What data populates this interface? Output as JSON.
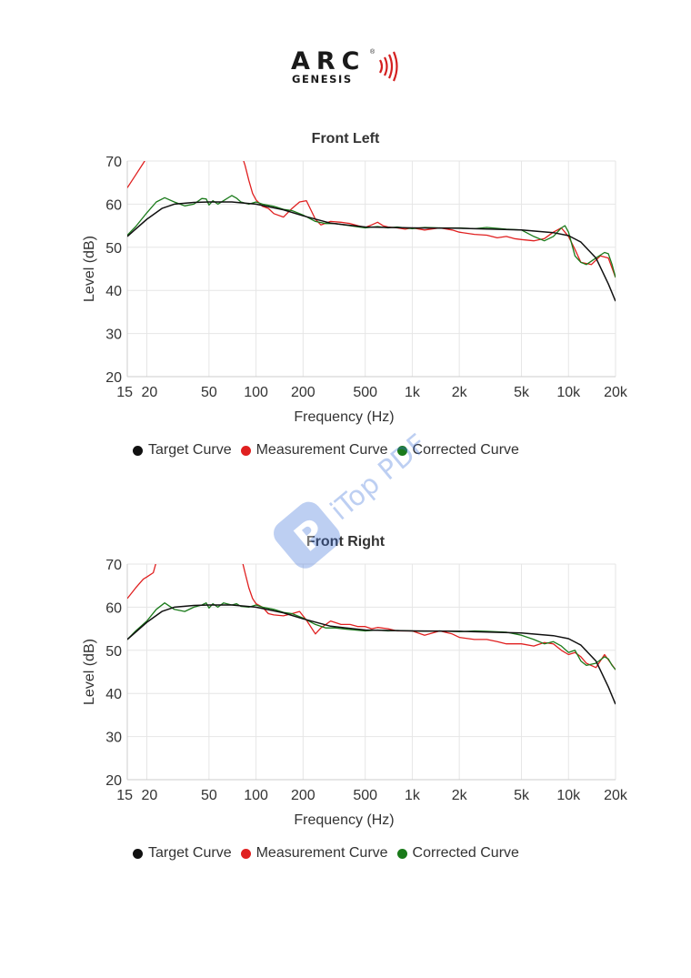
{
  "logo": {
    "word": "ARC",
    "sub": "GENESIS",
    "reg": "®"
  },
  "watermark": {
    "text": "iTop PDF"
  },
  "legend": [
    {
      "label": "Target Curve",
      "color": "#111111"
    },
    {
      "label": "Measurement Curve",
      "color": "#e02020"
    },
    {
      "label": "Corrected Curve",
      "color": "#1a7a1a"
    }
  ],
  "chart_data": [
    {
      "type": "line",
      "title": "Front Left",
      "xlabel": "Frequency (Hz)",
      "ylabel": "Level (dB)",
      "xscale": "log",
      "xlim": [
        15,
        20000
      ],
      "ylim": [
        20,
        70
      ],
      "xticks": [
        {
          "v": 15,
          "label": "15"
        },
        {
          "v": 20,
          "label": "20"
        },
        {
          "v": 50,
          "label": "50"
        },
        {
          "v": 100,
          "label": "100"
        },
        {
          "v": 200,
          "label": "200"
        },
        {
          "v": 500,
          "label": "500"
        },
        {
          "v": 1000,
          "label": "1k"
        },
        {
          "v": 2000,
          "label": "2k"
        },
        {
          "v": 5000,
          "label": "5k"
        },
        {
          "v": 10000,
          "label": "10k"
        },
        {
          "v": 20000,
          "label": "20k"
        }
      ],
      "yticks": [
        20,
        30,
        40,
        50,
        60,
        70
      ],
      "grid": true,
      "legend_position": "bottom-left",
      "series": [
        {
          "name": "Target Curve",
          "color": "#111111",
          "x": [
            15,
            20,
            25,
            30,
            40,
            50,
            70,
            100,
            150,
            200,
            300,
            500,
            1000,
            2000,
            5000,
            8000,
            10000,
            12000,
            15000,
            18000,
            20000
          ],
          "y": [
            52.5,
            56.5,
            59.0,
            60.0,
            60.4,
            60.5,
            60.5,
            60.0,
            58.7,
            57.3,
            55.6,
            54.7,
            54.5,
            54.4,
            54.0,
            53.4,
            52.7,
            51.2,
            47.5,
            41.5,
            37.5
          ]
        },
        {
          "name": "Measurement Curve",
          "color": "#e02020",
          "x": [
            15,
            17,
            19,
            20,
            21,
            80,
            85,
            90,
            95,
            100,
            110,
            120,
            130,
            150,
            170,
            190,
            210,
            240,
            260,
            300,
            350,
            400,
            450,
            500,
            550,
            600,
            650,
            700,
            800,
            900,
            1000,
            1200,
            1500,
            1800,
            2000,
            2500,
            3000,
            3500,
            4000,
            4500,
            5000,
            6000,
            7000,
            8000,
            9000,
            10000,
            11000,
            12000,
            14000,
            16000,
            18000,
            20000
          ],
          "y": [
            63.8,
            66.8,
            69.5,
            70.8,
            72,
            72,
            69,
            65.5,
            62.5,
            61.0,
            59.5,
            59.0,
            57.8,
            57.0,
            59.0,
            60.5,
            60.8,
            56.5,
            55.2,
            56.0,
            55.8,
            55.5,
            55.0,
            54.6,
            55.2,
            55.8,
            55.0,
            54.7,
            54.5,
            54.2,
            54.5,
            54.0,
            54.5,
            54.0,
            53.5,
            53.0,
            52.8,
            52.2,
            52.5,
            52.0,
            51.8,
            51.5,
            52.0,
            53.5,
            54.5,
            52.5,
            49.5,
            46.5,
            46.0,
            48.0,
            47.5,
            43.0
          ]
        },
        {
          "name": "Corrected Curve",
          "color": "#1a7a1a",
          "x": [
            15,
            17,
            20,
            23,
            26,
            30,
            35,
            40,
            45,
            48,
            50,
            53,
            57,
            62,
            70,
            75,
            80,
            90,
            100,
            110,
            130,
            150,
            170,
            200,
            240,
            280,
            320,
            400,
            500,
            600,
            700,
            800,
            1000,
            1200,
            1500,
            2000,
            2500,
            3000,
            4000,
            5000,
            6000,
            7000,
            8000,
            9000,
            9500,
            10000,
            11000,
            12000,
            13000,
            15000,
            17000,
            18000,
            19000,
            20000
          ],
          "y": [
            52.8,
            54.8,
            58.0,
            60.5,
            61.5,
            60.5,
            59.6,
            60.0,
            61.3,
            61.2,
            59.8,
            60.8,
            60.0,
            60.8,
            62.0,
            61.4,
            60.5,
            60.0,
            60.5,
            60.0,
            59.5,
            58.8,
            58.5,
            57.5,
            56.0,
            55.5,
            55.5,
            55.0,
            54.5,
            54.8,
            54.5,
            54.7,
            54.3,
            54.6,
            54.5,
            54.5,
            54.3,
            54.6,
            54.2,
            54.0,
            52.5,
            51.5,
            52.5,
            54.5,
            55.0,
            53.5,
            48.0,
            46.5,
            46.0,
            47.5,
            48.8,
            48.5,
            46.0,
            43.0
          ]
        }
      ]
    },
    {
      "type": "line",
      "title": "Front Right",
      "xlabel": "Frequency (Hz)",
      "ylabel": "Level (dB)",
      "xscale": "log",
      "xlim": [
        15,
        20000
      ],
      "ylim": [
        20,
        70
      ],
      "xticks": [
        {
          "v": 15,
          "label": "15"
        },
        {
          "v": 20,
          "label": "20"
        },
        {
          "v": 50,
          "label": "50"
        },
        {
          "v": 100,
          "label": "100"
        },
        {
          "v": 200,
          "label": "200"
        },
        {
          "v": 500,
          "label": "500"
        },
        {
          "v": 1000,
          "label": "1k"
        },
        {
          "v": 2000,
          "label": "2k"
        },
        {
          "v": 5000,
          "label": "5k"
        },
        {
          "v": 10000,
          "label": "10k"
        },
        {
          "v": 20000,
          "label": "20k"
        }
      ],
      "yticks": [
        20,
        30,
        40,
        50,
        60,
        70
      ],
      "grid": true,
      "legend_position": "bottom-left",
      "series": [
        {
          "name": "Target Curve",
          "color": "#111111",
          "x": [
            15,
            20,
            25,
            30,
            40,
            50,
            70,
            100,
            150,
            200,
            300,
            500,
            1000,
            2000,
            5000,
            8000,
            10000,
            12000,
            15000,
            18000,
            20000
          ],
          "y": [
            52.5,
            56.5,
            59.0,
            60.0,
            60.4,
            60.5,
            60.5,
            60.0,
            58.7,
            57.3,
            55.6,
            54.7,
            54.5,
            54.4,
            54.0,
            53.4,
            52.7,
            51.2,
            47.5,
            41.5,
            37.5
          ]
        },
        {
          "name": "Measurement Curve",
          "color": "#e02020",
          "x": [
            15,
            17,
            19,
            20,
            22,
            23,
            80,
            85,
            90,
            95,
            100,
            110,
            120,
            130,
            150,
            170,
            190,
            210,
            240,
            260,
            280,
            300,
            350,
            400,
            450,
            500,
            550,
            600,
            700,
            800,
            1000,
            1200,
            1500,
            1800,
            2000,
            2500,
            3000,
            3500,
            4000,
            5000,
            6000,
            7000,
            8000,
            9000,
            10000,
            11000,
            12000,
            13000,
            15000,
            17000,
            20000
          ],
          "y": [
            62.0,
            64.5,
            66.5,
            67.0,
            68.0,
            70.5,
            72,
            68,
            64.5,
            62.0,
            60.8,
            60.0,
            58.5,
            58.2,
            58.0,
            58.5,
            59.0,
            57.0,
            53.8,
            55.2,
            56.0,
            56.8,
            56.0,
            56.0,
            55.5,
            55.5,
            55.0,
            55.3,
            55.0,
            54.5,
            54.5,
            53.5,
            54.5,
            53.8,
            53.0,
            52.5,
            52.5,
            52.0,
            51.5,
            51.5,
            51.0,
            51.8,
            51.5,
            50.0,
            49.0,
            49.5,
            48.5,
            47.0,
            46.0,
            49.0,
            45.5
          ]
        },
        {
          "name": "Corrected Curve",
          "color": "#1a7a1a",
          "x": [
            15,
            17,
            20,
            23,
            26,
            30,
            35,
            40,
            45,
            48,
            50,
            53,
            57,
            62,
            70,
            75,
            80,
            90,
            100,
            110,
            130,
            150,
            170,
            200,
            240,
            280,
            320,
            400,
            500,
            600,
            700,
            800,
            1000,
            1200,
            1500,
            2000,
            2500,
            3000,
            4000,
            5000,
            6000,
            7000,
            8000,
            9000,
            10000,
            11000,
            12000,
            13000,
            15000,
            17000,
            18000,
            19000,
            20000
          ],
          "y": [
            52.5,
            54.5,
            56.8,
            59.5,
            61.0,
            59.5,
            59.0,
            60.0,
            60.5,
            61.0,
            59.8,
            60.8,
            60.0,
            61.0,
            60.5,
            60.8,
            60.2,
            60.0,
            60.5,
            60.0,
            59.5,
            58.8,
            58.5,
            57.5,
            56.0,
            55.2,
            55.2,
            54.8,
            54.5,
            54.7,
            54.5,
            54.6,
            54.5,
            54.4,
            54.5,
            54.3,
            54.5,
            54.4,
            54.2,
            53.5,
            52.5,
            51.5,
            52.0,
            51.0,
            49.5,
            50.0,
            47.5,
            46.5,
            47.0,
            48.5,
            48.0,
            46.5,
            45.5
          ]
        }
      ]
    }
  ]
}
